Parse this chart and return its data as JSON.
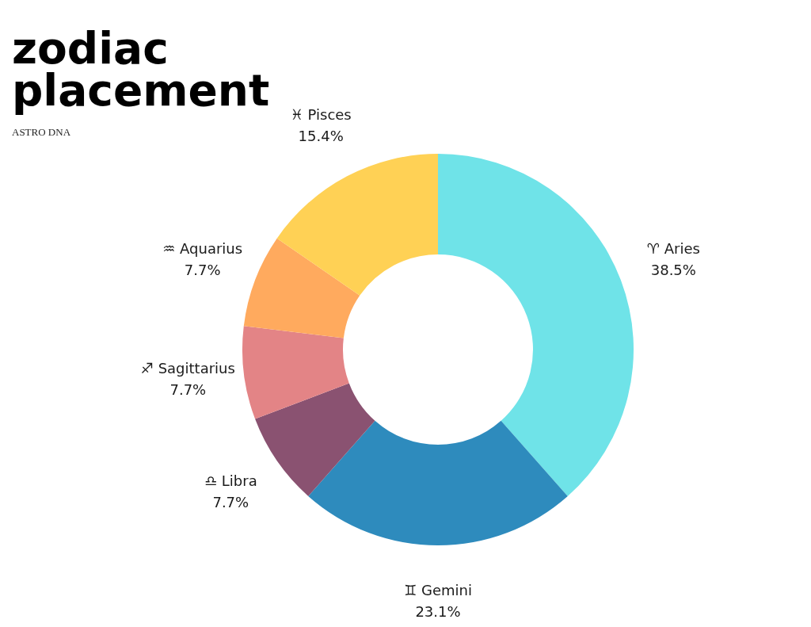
{
  "chart_data": {
    "type": "donut",
    "title": "zodiac placement",
    "subtitle": "ASTRO DNA",
    "categories": [
      "♈ Aries",
      "♊ Gemini",
      "♎ Libra",
      "♐ Sagittarius",
      "♒ Aquarius",
      "♓ Pisces"
    ],
    "values": [
      38.5,
      23.1,
      7.7,
      7.7,
      7.7,
      15.4
    ],
    "value_labels": [
      "38.5%",
      "23.1%",
      "7.7%",
      "7.7%",
      "7.7%",
      "15.4%"
    ],
    "colors": [
      "#6fe3e8",
      "#2e8bbd",
      "#8a5271",
      "#e38486",
      "#ffaa5e",
      "#ffd155"
    ]
  }
}
